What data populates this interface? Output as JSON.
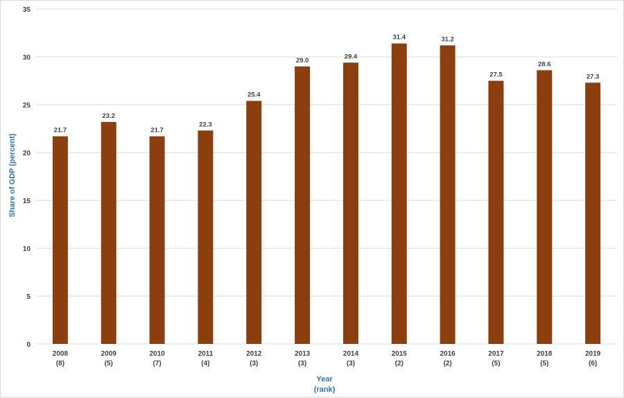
{
  "chart_data": {
    "type": "bar",
    "categories": [
      "2008",
      "2009",
      "2010",
      "2011",
      "2012",
      "2013",
      "2014",
      "2015",
      "2016",
      "2017",
      "2018",
      "2019"
    ],
    "ranks": [
      "(8)",
      "(5)",
      "(7)",
      "(4)",
      "(3)",
      "(3)",
      "(3)",
      "(2)",
      "(2)",
      "(5)",
      "(5)",
      "(6)"
    ],
    "values": [
      21.7,
      23.2,
      21.7,
      22.3,
      25.4,
      29.0,
      29.4,
      31.4,
      31.2,
      27.5,
      28.6,
      27.3
    ],
    "data_labels": [
      "21.7",
      "23.2",
      "21.7",
      "22.3",
      "25.4",
      "29.0",
      "29.4",
      "31.4",
      "31.2",
      "27.5",
      "28.6",
      "27.3"
    ],
    "ylabel": "Share of GDP (percent)",
    "xlabel_line1": "Year",
    "xlabel_line2": "(rank)",
    "ylim": [
      0,
      35
    ],
    "yticks": [
      0,
      5,
      10,
      15,
      20,
      25,
      30,
      35
    ],
    "grid": true,
    "legend": "none",
    "colors": {
      "bar": "#8b3e0f",
      "grid": "#d9d9d9",
      "axis_title": "#2e75b6",
      "text": "#404040"
    }
  }
}
